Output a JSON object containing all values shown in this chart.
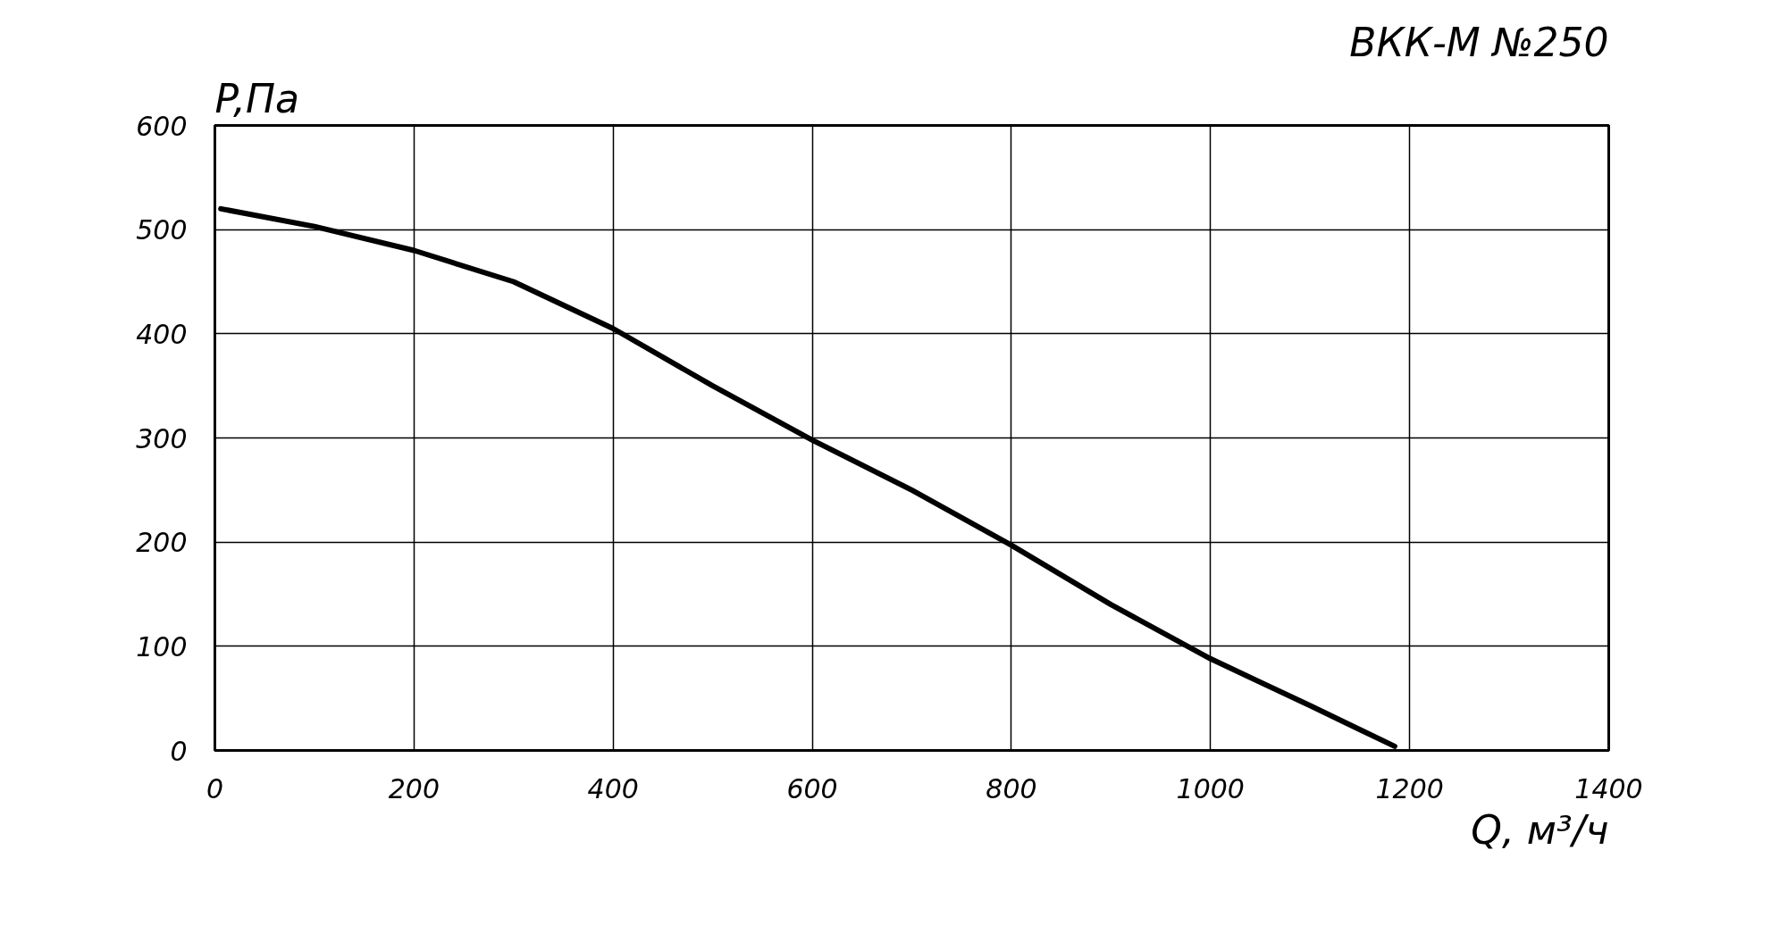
{
  "chart_data": {
    "type": "line",
    "title": "ВКК-М №250",
    "xlabel": "Q, м³/ч",
    "ylabel": "P,Па",
    "series": [
      {
        "color": "#000000",
        "x": [
          6,
          100,
          200,
          300,
          400,
          500,
          600,
          700,
          800,
          900,
          1000,
          1100,
          1185
        ],
        "values": [
          520,
          503,
          480,
          450,
          405,
          350,
          298,
          250,
          197,
          140,
          88,
          43,
          4
        ]
      }
    ],
    "xlim": [
      0,
      1400
    ],
    "ylim": [
      0,
      600
    ],
    "xticks": [
      0,
      200,
      400,
      600,
      800,
      1000,
      1200,
      1400
    ],
    "yticks": [
      0,
      100,
      200,
      300,
      400,
      500,
      600
    ],
    "grid": true,
    "marker": "none",
    "line_style": "solid"
  }
}
